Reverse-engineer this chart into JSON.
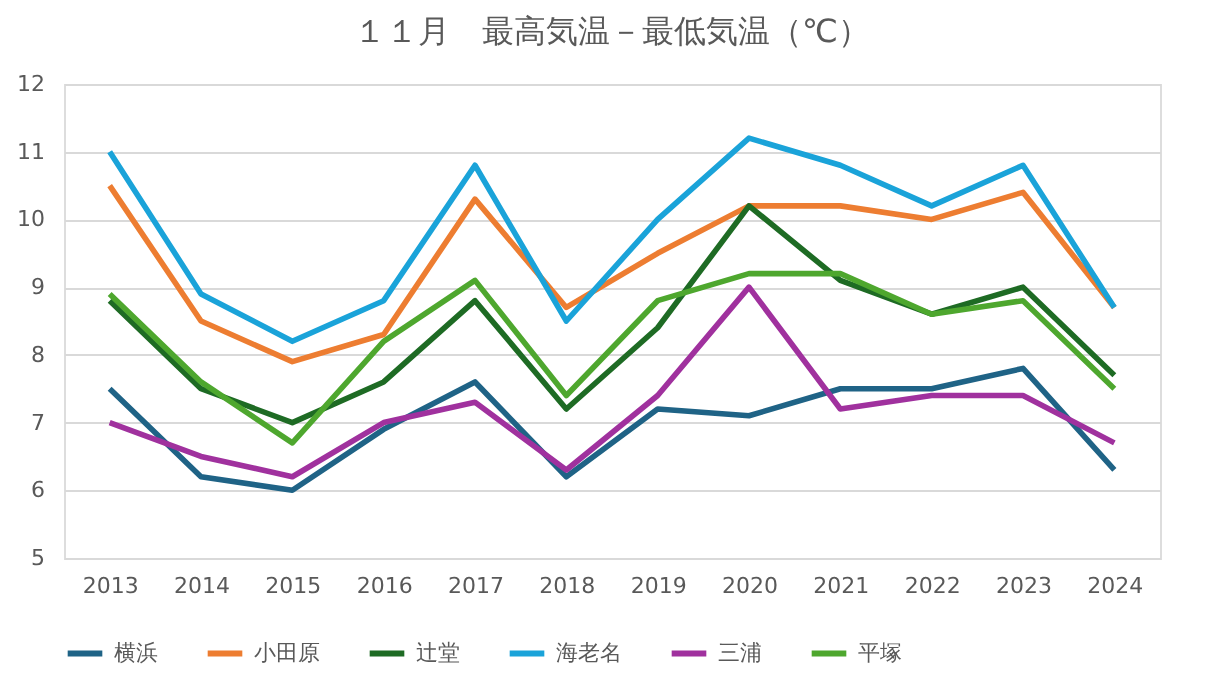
{
  "chart_data": {
    "type": "line",
    "title": "１１月　最高気温－最低気温（℃）",
    "categories": [
      "2013",
      "2014",
      "2015",
      "2016",
      "2017",
      "2018",
      "2019",
      "2020",
      "2021",
      "2022",
      "2023",
      "2024"
    ],
    "series": [
      {
        "name": "横浜",
        "color": "#1f6386",
        "values": [
          7.5,
          6.2,
          6.0,
          6.9,
          7.6,
          6.2,
          7.2,
          7.1,
          7.5,
          7.5,
          7.8,
          6.3
        ]
      },
      {
        "name": "小田原",
        "color": "#ed7d31",
        "values": [
          10.5,
          8.5,
          7.9,
          8.3,
          10.3,
          8.7,
          9.5,
          10.2,
          10.2,
          10.0,
          10.4,
          8.7
        ]
      },
      {
        "name": "辻堂",
        "color": "#1e6b24",
        "values": [
          8.8,
          7.5,
          7.0,
          7.6,
          8.8,
          7.2,
          8.4,
          10.2,
          9.1,
          8.6,
          9.0,
          7.7
        ]
      },
      {
        "name": "海老名",
        "color": "#1aa3d9",
        "values": [
          11.0,
          8.9,
          8.2,
          8.8,
          10.8,
          8.5,
          10.0,
          11.2,
          10.8,
          10.2,
          10.8,
          8.7
        ]
      },
      {
        "name": "三浦",
        "color": "#a0319e",
        "values": [
          7.0,
          6.5,
          6.2,
          7.0,
          7.3,
          6.3,
          7.4,
          9.0,
          7.2,
          7.4,
          7.4,
          6.7
        ]
      },
      {
        "name": "平塚",
        "color": "#4ea72e",
        "values": [
          8.9,
          7.6,
          6.7,
          8.2,
          9.1,
          7.4,
          8.8,
          9.2,
          9.2,
          8.6,
          8.8,
          7.5
        ]
      }
    ],
    "ylim": [
      5,
      12
    ],
    "yticks": [
      5,
      6,
      7,
      8,
      9,
      10,
      11,
      12
    ],
    "grid": "y",
    "legend": "bottom",
    "marker": "none",
    "line_style": "solid"
  }
}
